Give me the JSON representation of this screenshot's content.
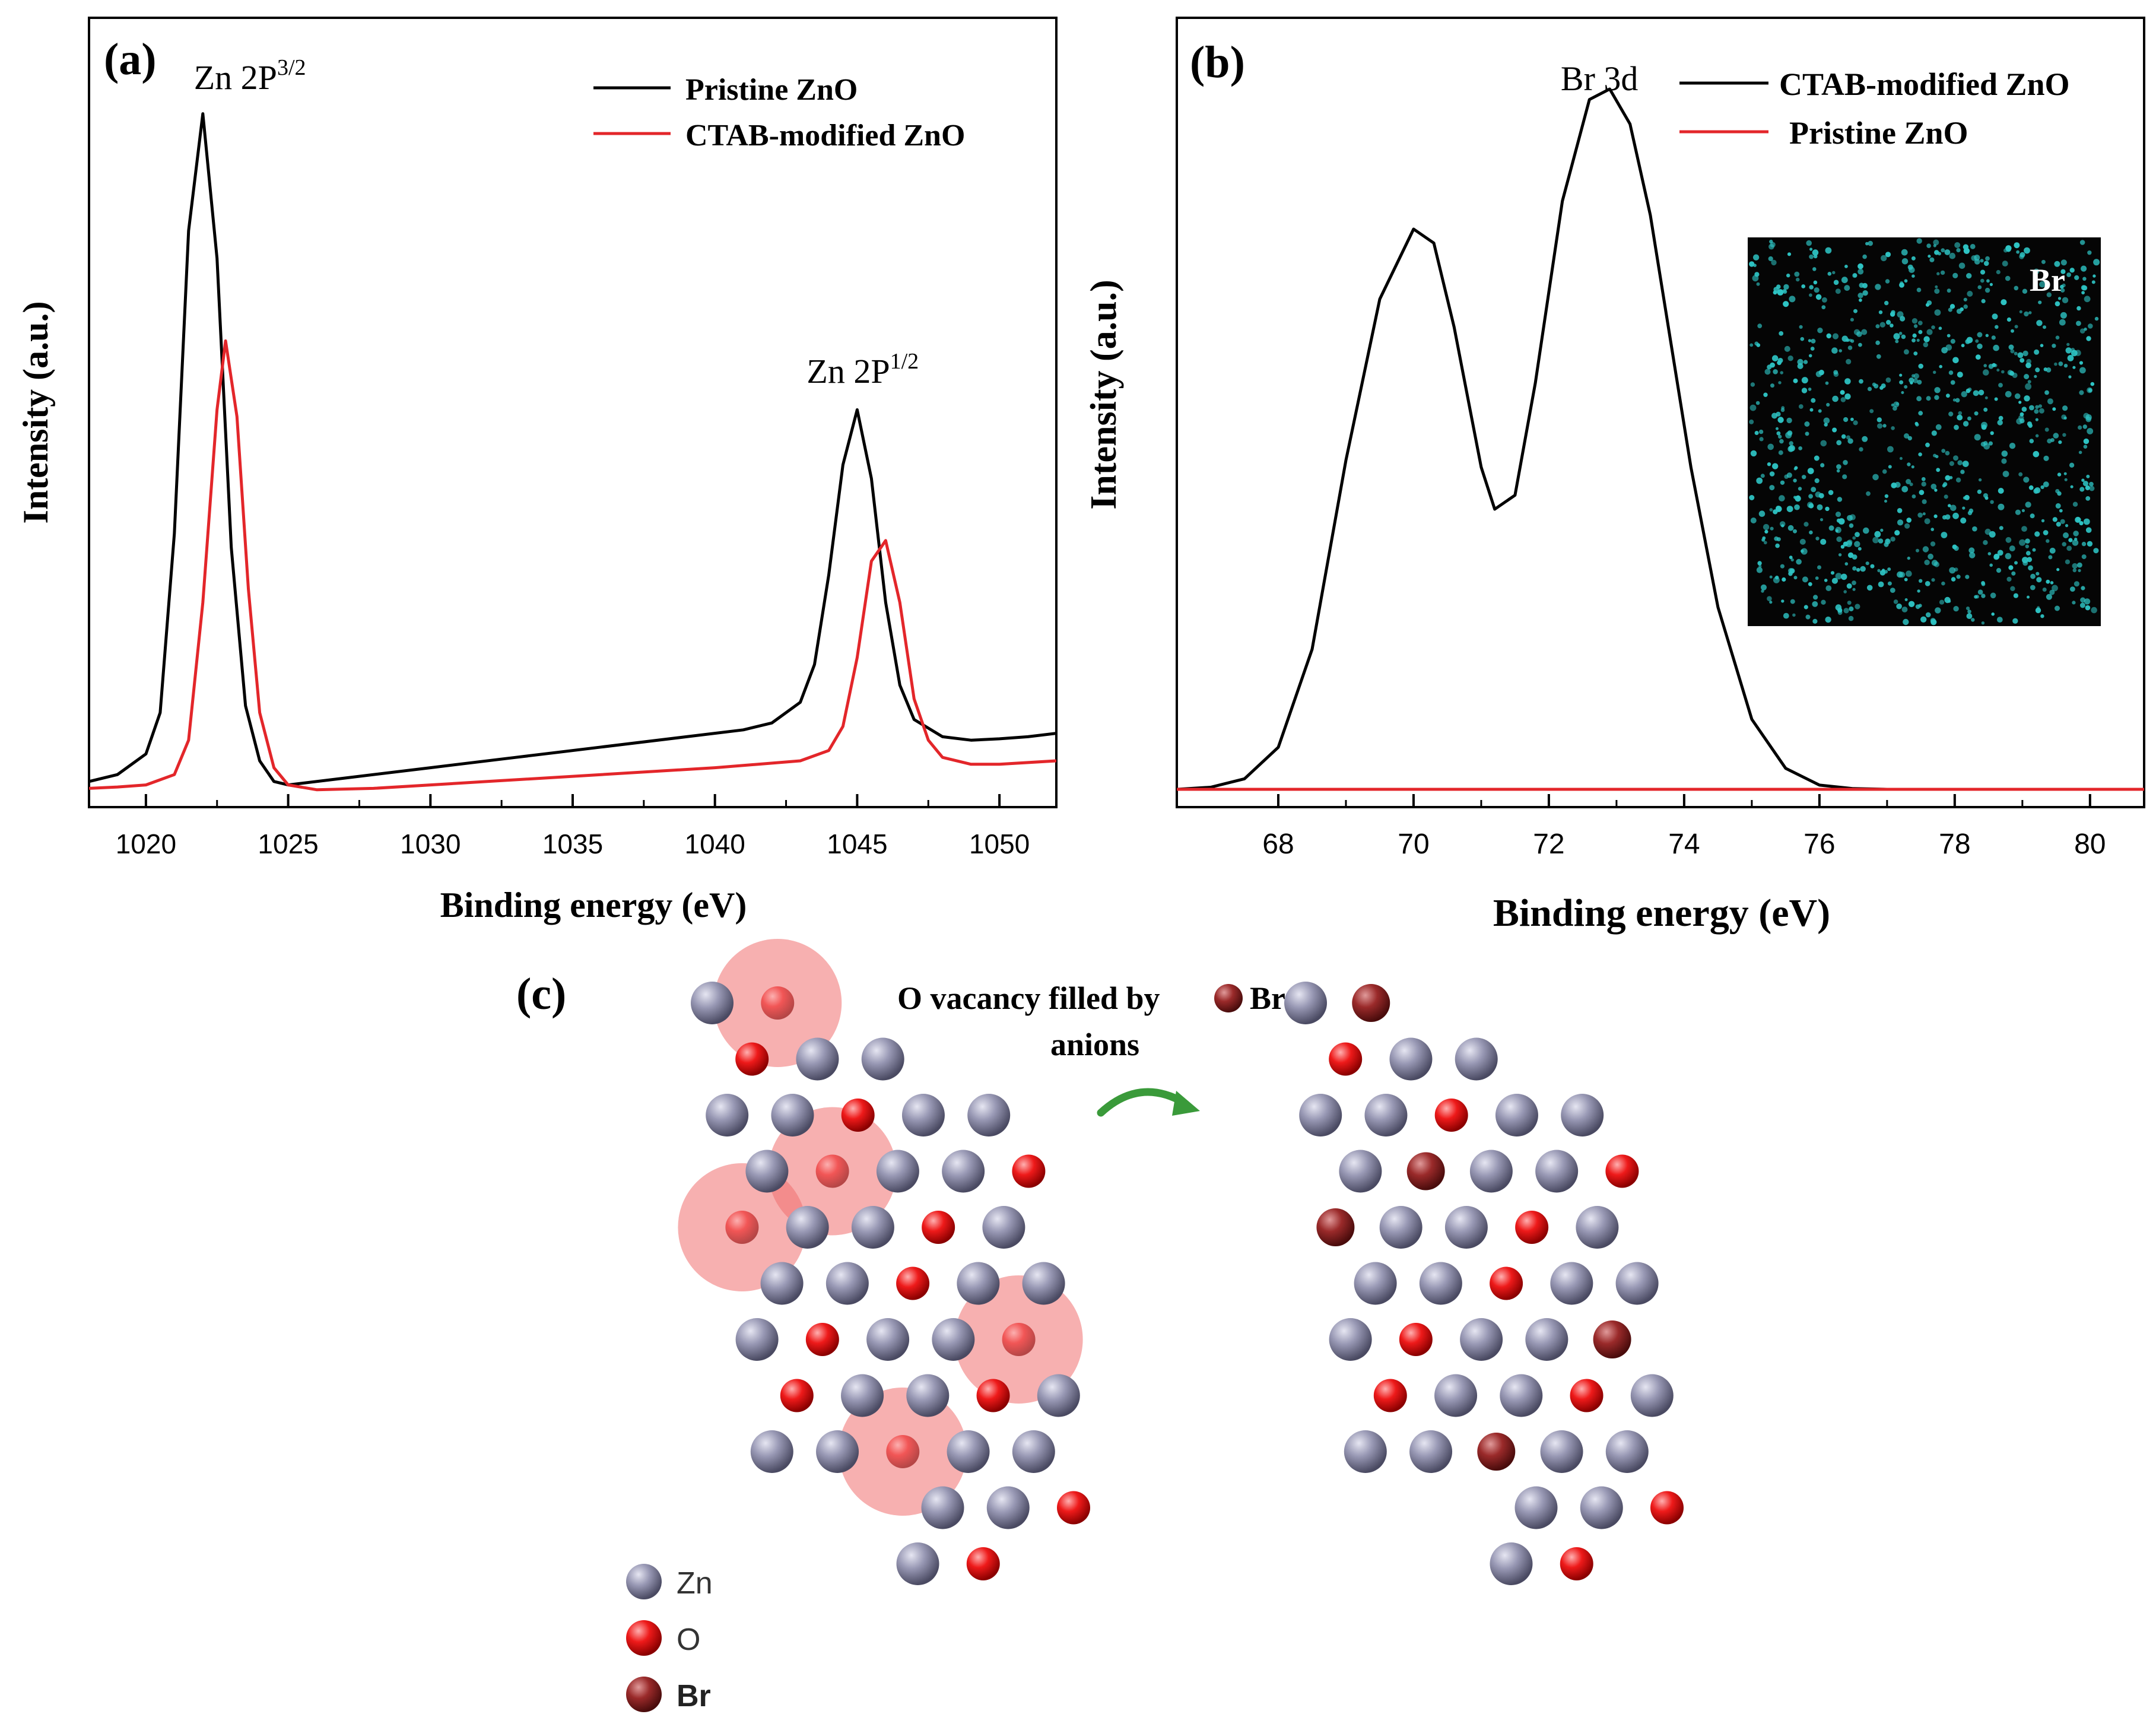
{
  "colors": {
    "axis": "#000000",
    "pristine": "#000000",
    "ctab": "#e3262a",
    "zn_atom": "#8c8ca6",
    "o_atom": "#e01010",
    "br_atom": "#8b2020",
    "vacancy_halo": "#f07070",
    "arrow": "#3a9a3a",
    "inset_bg": "#050505",
    "inset_dots": "#2ec4c4"
  },
  "chart_data": [
    {
      "panel": "(a)",
      "type": "line",
      "xlabel": "Binding energy (eV)",
      "ylabel": "Intensity (a.u.)",
      "xlim": [
        1018,
        1052
      ],
      "ylim": [
        0,
        1
      ],
      "x_ticks": [
        1020,
        1025,
        1030,
        1035,
        1040,
        1045,
        1050
      ],
      "x_tick_labels": [
        "1020",
        "1025",
        "1030",
        "1035",
        "1040",
        "1045",
        "1050"
      ],
      "y_ticks_shown": false,
      "legend_position": "top-right",
      "annotations": [
        {
          "base": "Zn 2P",
          "sup": "3/2",
          "x": 1022.0
        },
        {
          "base": "Zn 2P",
          "sup": "1/2",
          "x": 1045.0
        }
      ],
      "series": [
        {
          "name": "Pristine ZnO",
          "color": "#000000",
          "x": [
            1018,
            1019,
            1020,
            1020.5,
            1021,
            1021.5,
            1022,
            1022.5,
            1023,
            1023.5,
            1024,
            1024.5,
            1025,
            1027,
            1030,
            1033,
            1036,
            1039,
            1041,
            1042,
            1043,
            1043.5,
            1044,
            1044.5,
            1045,
            1045.5,
            1046,
            1046.5,
            1047,
            1048,
            1049,
            1050,
            1051,
            1052
          ],
          "y": [
            0.02,
            0.03,
            0.06,
            0.12,
            0.38,
            0.82,
            0.99,
            0.78,
            0.36,
            0.13,
            0.05,
            0.02,
            0.015,
            0.025,
            0.04,
            0.055,
            0.07,
            0.085,
            0.095,
            0.105,
            0.135,
            0.19,
            0.32,
            0.48,
            0.56,
            0.46,
            0.28,
            0.16,
            0.11,
            0.085,
            0.08,
            0.082,
            0.085,
            0.09
          ]
        },
        {
          "name": "CTAB-modified ZnO",
          "color": "#e3262a",
          "x": [
            1018,
            1019,
            1020,
            1021,
            1021.5,
            1022,
            1022.5,
            1022.8,
            1023.2,
            1023.6,
            1024,
            1024.5,
            1025,
            1026,
            1028,
            1032,
            1036,
            1040,
            1043,
            1044,
            1044.5,
            1045,
            1045.5,
            1046,
            1046.5,
            1047,
            1047.5,
            1048,
            1049,
            1050,
            1052
          ],
          "y": [
            0.01,
            0.012,
            0.015,
            0.03,
            0.08,
            0.28,
            0.56,
            0.66,
            0.55,
            0.3,
            0.12,
            0.04,
            0.015,
            0.008,
            0.01,
            0.02,
            0.03,
            0.04,
            0.05,
            0.065,
            0.1,
            0.2,
            0.34,
            0.37,
            0.28,
            0.14,
            0.08,
            0.055,
            0.045,
            0.045,
            0.05
          ]
        }
      ]
    },
    {
      "panel": "(b)",
      "type": "line",
      "xlabel": "Binding energy (eV)",
      "ylabel": "Intensity (a.u.)",
      "xlim": [
        66.5,
        80.8
      ],
      "ylim": [
        0,
        1
      ],
      "x_ticks": [
        68,
        70,
        72,
        74,
        76,
        78,
        80
      ],
      "x_tick_labels": [
        "68",
        "70",
        "72",
        "74",
        "76",
        "78",
        "80"
      ],
      "y_ticks_shown": false,
      "legend_position": "top-right",
      "annotations": [
        {
          "base": "Br 3d",
          "sup": "",
          "x": 72.0
        }
      ],
      "inset": {
        "label": "Br",
        "description_visible": false
      },
      "series": [
        {
          "name": "CTAB-modified ZnO",
          "color": "#000000",
          "x": [
            66.5,
            67.0,
            67.5,
            68.0,
            68.5,
            69.0,
            69.5,
            70.0,
            70.3,
            70.6,
            71.0,
            71.2,
            71.5,
            71.8,
            72.2,
            72.6,
            72.9,
            73.2,
            73.5,
            73.8,
            74.1,
            74.5,
            75.0,
            75.5,
            76.0,
            76.5,
            77.0,
            78.0,
            80.8
          ],
          "y": [
            0.0,
            0.003,
            0.015,
            0.06,
            0.2,
            0.47,
            0.7,
            0.8,
            0.78,
            0.66,
            0.46,
            0.4,
            0.42,
            0.58,
            0.84,
            0.985,
            1.0,
            0.95,
            0.82,
            0.64,
            0.46,
            0.26,
            0.1,
            0.03,
            0.006,
            0.001,
            0.0,
            0.0,
            0.0
          ]
        },
        {
          "name": "Pristine ZnO",
          "color": "#e3262a",
          "x": [
            66.5,
            80.8
          ],
          "y": [
            0.0,
            0.0
          ]
        }
      ]
    }
  ],
  "panel_c": {
    "label": "(c)",
    "title_line1": "O vacancy filled by",
    "title_br": "Br",
    "title_line2": "anions",
    "legend": [
      {
        "name": "Zn",
        "color": "#8c8ca6"
      },
      {
        "name": "O",
        "color": "#e01010"
      },
      {
        "name": "Br",
        "color": "#8b2020"
      }
    ]
  }
}
